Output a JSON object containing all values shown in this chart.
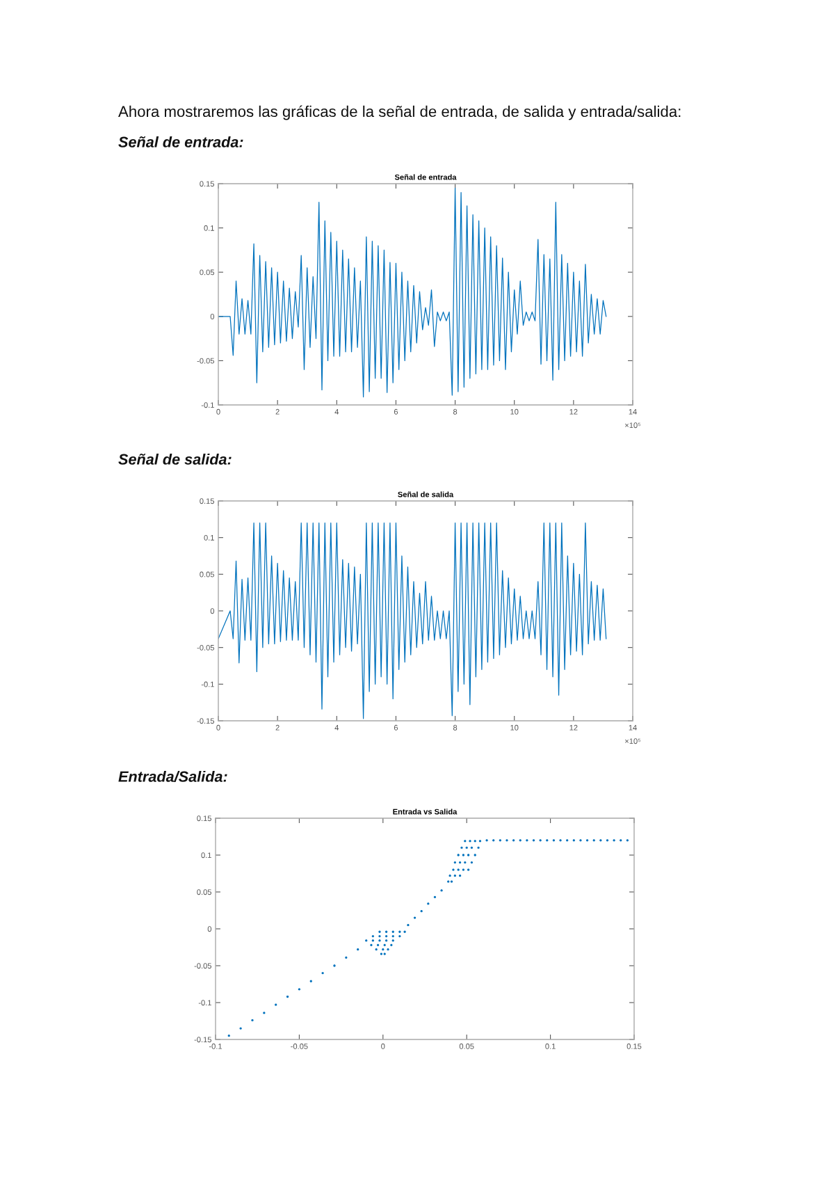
{
  "chart_data": [
    {
      "type": "line",
      "title": "Señal de entrada",
      "annotations": [
        "Ahora mostraremos las gráficas de la señal de entrada, de salida y entrada/salida:",
        "Señal de entrada:",
        "×10⁵"
      ],
      "x": [
        0,
        0.4,
        0.5,
        0.6,
        0.7,
        0.8,
        0.9,
        1,
        1.1,
        1.2,
        1.3,
        1.4,
        1.5,
        1.6,
        1.7,
        1.8,
        1.9,
        2,
        2.1,
        2.2,
        2.3,
        2.4,
        2.5,
        2.6,
        2.7,
        2.8,
        2.9,
        3,
        3.1,
        3.2,
        3.3,
        3.4,
        3.5,
        3.6,
        3.7,
        3.8,
        3.9,
        4,
        4.1,
        4.2,
        4.3,
        4.4,
        4.5,
        4.6,
        4.7,
        4.8,
        4.9,
        5,
        5.1,
        5.2,
        5.3,
        5.4,
        5.5,
        5.6,
        5.7,
        5.8,
        5.9,
        6,
        6.1,
        6.2,
        6.3,
        6.4,
        6.5,
        6.6,
        6.7,
        6.8,
        6.9,
        7,
        7.1,
        7.2,
        7.3,
        7.4,
        7.5,
        7.6,
        7.7,
        7.8,
        7.9,
        8,
        8.1,
        8.2,
        8.3,
        8.4,
        8.5,
        8.6,
        8.7,
        8.8,
        8.9,
        9,
        9.1,
        9.2,
        9.3,
        9.4,
        9.5,
        9.6,
        9.7,
        9.8,
        9.9,
        10,
        10.1,
        10.2,
        10.3,
        10.4,
        10.5,
        10.6,
        10.7,
        10.8,
        10.9,
        11,
        11.1,
        11.2,
        11.3,
        11.4,
        11.5,
        11.6,
        11.7,
        11.8,
        11.9,
        12,
        12.1,
        12.2,
        12.3,
        12.4,
        12.5,
        12.6,
        12.7,
        12.8,
        12.9,
        13,
        13.1
      ],
      "series": [
        {
          "color": "#0072bd",
          "values": [
            0,
            0,
            -0.044,
            0.04,
            -0.02,
            0.02,
            -0.02,
            0.018,
            -0.02,
            0.082,
            -0.075,
            0.069,
            -0.04,
            0.062,
            -0.035,
            0.055,
            -0.032,
            0.05,
            -0.03,
            0.04,
            -0.028,
            0.032,
            -0.025,
            0.028,
            -0.012,
            0.069,
            -0.06,
            0.055,
            -0.035,
            0.045,
            -0.025,
            0.129,
            -0.083,
            0.108,
            -0.05,
            0.095,
            -0.045,
            0.085,
            -0.045,
            0.075,
            -0.04,
            0.065,
            -0.04,
            0.055,
            -0.035,
            0.04,
            -0.091,
            0.09,
            -0.085,
            0.085,
            -0.07,
            0.08,
            -0.07,
            0.075,
            -0.086,
            0.061,
            -0.075,
            0.06,
            -0.06,
            0.05,
            -0.05,
            0.04,
            -0.04,
            0.035,
            -0.03,
            0.028,
            -0.015,
            0.01,
            -0.01,
            0.03,
            -0.034,
            0.005,
            -0.005,
            0.005,
            -0.005,
            0.005,
            -0.089,
            0.145,
            -0.085,
            0.14,
            -0.08,
            0.125,
            -0.07,
            0.115,
            -0.065,
            0.108,
            -0.06,
            0.1,
            -0.06,
            0.09,
            -0.055,
            0.08,
            -0.05,
            0.066,
            -0.06,
            0.05,
            -0.04,
            0.03,
            -0.02,
            0.04,
            -0.01,
            0.005,
            -0.005,
            0.005,
            -0.005,
            0.087,
            -0.054,
            0.07,
            -0.05,
            0.065,
            -0.072,
            0.129,
            -0.06,
            0.07,
            -0.05,
            0.06,
            -0.045,
            0.05,
            -0.04,
            0.04,
            -0.045,
            0.059,
            -0.03,
            0.025,
            -0.02,
            0.02,
            -0.02,
            0.018,
            0
          ]
        }
      ],
      "xlim": [
        0,
        14
      ],
      "xticks": [
        0,
        2,
        4,
        6,
        8,
        10,
        12,
        14
      ],
      "ylim": [
        -0.1,
        0.15
      ],
      "yticks": [
        -0.1,
        -0.05,
        0,
        0.05,
        0.1,
        0.15
      ]
    },
    {
      "type": "line",
      "title": "Señal de salida",
      "annotations": [
        "Señal de salida:",
        "×10⁵"
      ],
      "x": [
        0,
        0.4,
        0.5,
        0.6,
        0.7,
        0.8,
        0.9,
        1,
        1.1,
        1.2,
        1.3,
        1.4,
        1.5,
        1.6,
        1.7,
        1.8,
        1.9,
        2,
        2.1,
        2.2,
        2.3,
        2.4,
        2.5,
        2.6,
        2.7,
        2.8,
        2.9,
        3,
        3.1,
        3.2,
        3.3,
        3.4,
        3.5,
        3.6,
        3.7,
        3.8,
        3.9,
        4,
        4.1,
        4.2,
        4.3,
        4.4,
        4.5,
        4.6,
        4.7,
        4.8,
        4.9,
        5,
        5.1,
        5.2,
        5.3,
        5.4,
        5.5,
        5.6,
        5.7,
        5.8,
        5.9,
        6,
        6.1,
        6.2,
        6.3,
        6.4,
        6.5,
        6.6,
        6.7,
        6.8,
        6.9,
        7,
        7.1,
        7.2,
        7.3,
        7.4,
        7.5,
        7.6,
        7.7,
        7.8,
        7.9,
        8,
        8.1,
        8.2,
        8.3,
        8.4,
        8.5,
        8.6,
        8.7,
        8.8,
        8.9,
        9,
        9.1,
        9.2,
        9.3,
        9.4,
        9.5,
        9.6,
        9.7,
        9.8,
        9.9,
        10,
        10.1,
        10.2,
        10.3,
        10.4,
        10.5,
        10.6,
        10.7,
        10.8,
        10.9,
        11,
        11.1,
        11.2,
        11.3,
        11.4,
        11.5,
        11.6,
        11.7,
        11.8,
        11.9,
        12,
        12.1,
        12.2,
        12.3,
        12.4,
        12.5,
        12.6,
        12.7,
        12.8,
        12.9,
        13,
        13.1
      ],
      "series": [
        {
          "color": "#0072bd",
          "values": [
            -0.038,
            0,
            -0.038,
            0.068,
            -0.071,
            0.043,
            -0.04,
            0.045,
            -0.04,
            0.12,
            -0.083,
            0.12,
            -0.05,
            0.12,
            -0.045,
            0.075,
            -0.045,
            0.065,
            -0.042,
            0.055,
            -0.04,
            0.045,
            -0.04,
            0.04,
            -0.04,
            0.12,
            -0.05,
            0.12,
            -0.06,
            0.12,
            -0.07,
            0.12,
            -0.134,
            0.12,
            -0.09,
            0.12,
            -0.07,
            0.12,
            -0.06,
            0.07,
            -0.05,
            0.065,
            -0.055,
            0.06,
            -0.045,
            0.05,
            -0.147,
            0.12,
            -0.11,
            0.12,
            -0.1,
            0.12,
            -0.09,
            0.12,
            -0.1,
            0.12,
            -0.12,
            0.12,
            -0.08,
            0.075,
            -0.07,
            0.06,
            -0.06,
            0.04,
            -0.05,
            0.024,
            -0.045,
            0.04,
            -0.04,
            0.02,
            -0.04,
            0,
            -0.038,
            0,
            -0.038,
            0,
            -0.143,
            0.12,
            -0.11,
            0.12,
            -0.1,
            0.12,
            -0.128,
            0.12,
            -0.09,
            0.12,
            -0.08,
            0.12,
            -0.07,
            0.12,
            -0.065,
            0.12,
            -0.06,
            0.055,
            -0.05,
            0.045,
            -0.045,
            0.03,
            -0.04,
            0.02,
            -0.038,
            0,
            -0.038,
            0,
            -0.038,
            0.04,
            -0.06,
            0.12,
            -0.08,
            0.12,
            -0.09,
            0.12,
            -0.115,
            0.12,
            -0.08,
            0.075,
            -0.06,
            0.065,
            -0.055,
            0.05,
            -0.06,
            0.12,
            -0.045,
            0.04,
            -0.04,
            0.035,
            -0.04,
            0.03,
            -0.038
          ]
        }
      ],
      "xlim": [
        0,
        14
      ],
      "xticks": [
        0,
        2,
        4,
        6,
        8,
        10,
        12,
        14
      ],
      "ylim": [
        -0.15,
        0.15
      ],
      "yticks": [
        -0.15,
        -0.1,
        -0.05,
        0,
        0.05,
        0.1,
        0.15
      ]
    },
    {
      "type": "scatter",
      "title": "Entrada vs Salida",
      "annotations": [
        "Entrada/Salida:"
      ],
      "marker": "circle",
      "series": [
        {
          "color": "#0072bd",
          "x": [
            -0.092,
            -0.085,
            -0.078,
            -0.071,
            -0.064,
            -0.057,
            -0.05,
            -0.043,
            -0.036,
            -0.029,
            -0.022,
            -0.015,
            -0.002,
            0.002,
            0.006,
            0.01,
            0.013,
            -0.006,
            -0.002,
            0.002,
            0.006,
            0.01,
            -0.01,
            -0.006,
            -0.002,
            0.002,
            0.006,
            -0.007,
            -0.003,
            0.001,
            0.005,
            -0.004,
            0,
            0.003,
            -0.001,
            0.001,
            0.015,
            0.019,
            0.023,
            0.027,
            0.031,
            0.035,
            0.039,
            0.041,
            0.04,
            0.043,
            0.046,
            0.042,
            0.045,
            0.048,
            0.051,
            0.043,
            0.046,
            0.049,
            0.053,
            0.045,
            0.048,
            0.051,
            0.055,
            0.047,
            0.05,
            0.053,
            0.057,
            0.049,
            0.052,
            0.055,
            0.058,
            0.062,
            0.066,
            0.07,
            0.074,
            0.078,
            0.082,
            0.086,
            0.09,
            0.094,
            0.098,
            0.102,
            0.106,
            0.11,
            0.114,
            0.118,
            0.122,
            0.126,
            0.13,
            0.134,
            0.138,
            0.142,
            0.146
          ],
          "values": [
            -0.145,
            -0.135,
            -0.124,
            -0.114,
            -0.103,
            -0.092,
            -0.082,
            -0.071,
            -0.06,
            -0.05,
            -0.039,
            -0.028,
            -0.004,
            -0.004,
            -0.004,
            -0.004,
            -0.004,
            -0.01,
            -0.01,
            -0.01,
            -0.01,
            -0.01,
            -0.016,
            -0.016,
            -0.016,
            -0.016,
            -0.016,
            -0.022,
            -0.022,
            -0.022,
            -0.022,
            -0.028,
            -0.028,
            -0.028,
            -0.034,
            -0.034,
            0.005,
            0.015,
            0.024,
            0.034,
            0.043,
            0.052,
            0.064,
            0.064,
            0.072,
            0.072,
            0.072,
            0.08,
            0.08,
            0.08,
            0.08,
            0.09,
            0.09,
            0.09,
            0.09,
            0.1,
            0.1,
            0.1,
            0.1,
            0.11,
            0.11,
            0.11,
            0.11,
            0.119,
            0.119,
            0.119,
            0.119,
            0.12,
            0.12,
            0.12,
            0.12,
            0.12,
            0.12,
            0.12,
            0.12,
            0.12,
            0.12,
            0.12,
            0.12,
            0.12,
            0.12,
            0.12,
            0.12,
            0.12,
            0.12,
            0.12,
            0.12,
            0.12,
            0.12
          ]
        }
      ],
      "xlim": [
        -0.1,
        0.15
      ],
      "xticks": [
        -0.1,
        -0.05,
        0,
        0.05,
        0.1,
        0.15
      ],
      "ylim": [
        -0.15,
        0.15
      ],
      "yticks": [
        -0.15,
        -0.1,
        -0.05,
        0,
        0.05,
        0.1,
        0.15
      ]
    }
  ]
}
